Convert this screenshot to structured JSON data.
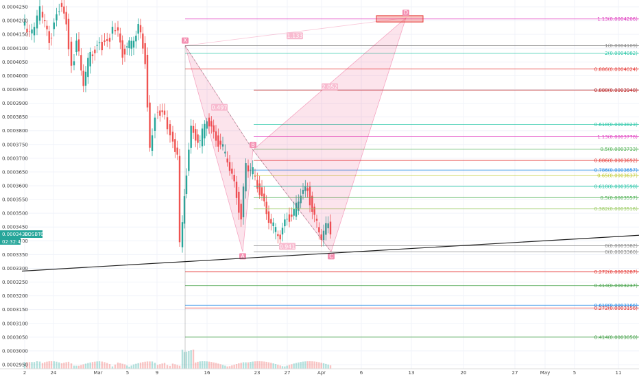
{
  "symbol": "EOSBTC",
  "price_tag": "0.0003430",
  "countdown": "02:32:46",
  "pattern_points": [
    {
      "name": "X",
      "date": "Mar 13",
      "price": 0.0004109
    },
    {
      "name": "A",
      "date": "Mar 20",
      "price": 0.000336
    },
    {
      "name": "B",
      "date": "Mar 23",
      "price": 0.000373
    },
    {
      "name": "C",
      "date": "Apr 2",
      "price": 0.000336
    },
    {
      "name": "D",
      "date": "Apr 11",
      "price": 0.000421
    }
  ],
  "pattern_ratios": [
    {
      "label": "0.497",
      "date": "Mar 16",
      "price": 0.0003885
    },
    {
      "label": "0.941",
      "date": "Mar 25",
      "price": 0.000338
    },
    {
      "label": "2.052",
      "date": "Mar 28",
      "price": 0.000396
    },
    {
      "label": "1.133",
      "date": "Mar 21",
      "price": 0.0004145
    }
  ],
  "fib_levels": [
    {
      "label": "1.13(0.0004206)",
      "price": 0.0004206,
      "color": "#e040c0"
    },
    {
      "label": "1(0.0004109)",
      "price": 0.0004109,
      "color": "#888888"
    },
    {
      "label": "2(0.0004082)",
      "price": 0.0004082,
      "color": "#26c6a6"
    },
    {
      "label": "0.886(0.0004024)",
      "price": 0.0004024,
      "color": "#e53935"
    },
    {
      "label": "0.888(0.0003948)",
      "price": 0.0003948,
      "color": "#b71c1c"
    },
    {
      "label": "0.618(0.0003823)",
      "price": 0.0003823,
      "color": "#26c6a6"
    },
    {
      "label": "1.13(0.0003778)",
      "price": 0.0003778,
      "color": "#e040c0"
    },
    {
      "label": "0.5(0.0003733)",
      "price": 0.0003733,
      "color": "#4caf50"
    },
    {
      "label": "0.886(0.0003692)",
      "price": 0.0003692,
      "color": "#e53935"
    },
    {
      "label": "0.786(0.0003657)",
      "price": 0.0003657,
      "color": "#1e88e5"
    },
    {
      "label": "0.65(0.0003637)",
      "price": 0.0003637,
      "color": "#c0ca33"
    },
    {
      "label": "0.618(0.0003598)",
      "price": 0.0003598,
      "color": "#26c6a6"
    },
    {
      "label": "0.5(0.0003557)",
      "price": 0.0003557,
      "color": "#4caf50"
    },
    {
      "label": "0.382(0.0003516)",
      "price": 0.0003516,
      "color": "#9ccc65"
    },
    {
      "label": "0(0.0003382)",
      "price": 0.0003382,
      "color": "#888888"
    },
    {
      "label": "0(0.0003360)",
      "price": 0.000336,
      "color": "#888888"
    },
    {
      "label": "0.272(0.0003287)",
      "price": 0.0003287,
      "color": "#e53935"
    },
    {
      "label": "0.414(0.0003237)",
      "price": 0.0003237,
      "color": "#43a047"
    },
    {
      "label": "0.618(0.0003166)",
      "price": 0.0003166,
      "color": "#1e88e5"
    },
    {
      "label": "0.272(0.0003156)",
      "price": 0.0003156,
      "color": "#e53935"
    },
    {
      "label": "0.414(0.0003050)",
      "price": 0.000305,
      "color": "#43a047"
    }
  ],
  "y_ticks": [
    "0.0004250",
    "0.0004200",
    "0.0004150",
    "0.0004100",
    "0.0004050",
    "0.0004000",
    "0.0003950",
    "0.0003900",
    "0.0003850",
    "0.0003800",
    "0.0003750",
    "0.0003700",
    "0.0003650",
    "0.0003600",
    "0.0003550",
    "0.0003500",
    "0.0003450",
    "0.0003400",
    "0.0003350",
    "0.0003300",
    "0.0003250",
    "0.0003200",
    "0.0003150",
    "0.0003100",
    "0.0003050",
    "0.0003000",
    "0.0002950"
  ],
  "x_ticks": [
    "2",
    "24",
    "Mar",
    "5",
    "9",
    "16",
    "23",
    "27",
    "Apr",
    "6",
    "13",
    "20",
    "27",
    "May",
    "5",
    "11"
  ],
  "chart_data": {
    "type": "candlestick",
    "title": "",
    "symbol": "EOSBTC",
    "ylim": [
      0.0002935,
      0.0004275
    ],
    "y_ticks": [
      0.000425,
      0.00042,
      0.000415,
      0.00041,
      0.000405,
      0.0004,
      0.000395,
      0.00039,
      0.000385,
      0.00038,
      0.000375,
      0.00037,
      0.000365,
      0.00036,
      0.000355,
      0.00035,
      0.000345,
      0.00034,
      0.000335,
      0.00033,
      0.000325,
      0.00032,
      0.000315,
      0.00031,
      0.000305,
      0.0003,
      0.000295
    ],
    "last_price": 0.000343,
    "series": [
      {
        "name": "trendline",
        "values": [
          0.000329,
          0.000342
        ]
      }
    ],
    "grid": true
  }
}
